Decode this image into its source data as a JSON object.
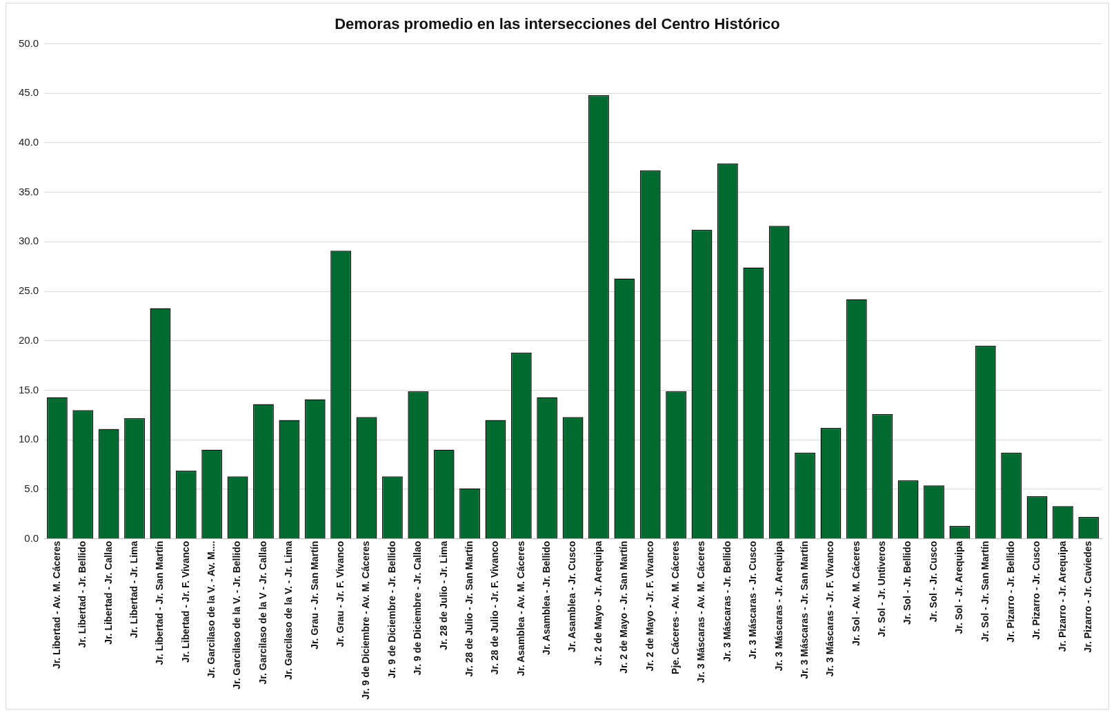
{
  "chart_data": {
    "type": "bar",
    "title": "Demoras promedio en las intersecciones del Centro Histórico",
    "categories": [
      "Jr. Libertad - Av. M. Cáceres",
      "Jr. Libertad - Jr. Bellido",
      "Jr. Libertad - Jr. Callao",
      "Jr. Libertad - Jr. Lima",
      "Jr. Libertad - Jr. San Martín",
      "Jr. Libertad - Jr. F. Vivanco",
      "Jr. Garcilaso de la V. - Av. M....",
      "Jr. Garcilaso de la V. - Jr. Bellido",
      "Jr. Garcilaso de la V - Jr. Callao",
      "Jr. Garcilaso de la V. - Jr. Lima",
      "Jr. Grau - Jr. San Martín",
      "Jr. Grau - Jr. F. Vivanco",
      "Jr. 9 de Diciembre - Av. M. Cáceres",
      "Jr. 9 de Diciembre - Jr. Bellido",
      "Jr. 9 de Diciembre - Jr. Callao",
      "Jr. 28 de Julio - Jr. Lima",
      "Jr. 28 de Julio - Jr. San Martín",
      "Jr. 28 de Julio - Jr. F. Vivanco",
      "Jr. Asamblea - Av. M. Cáceres",
      "Jr. Asamblea - Jr. Bellido",
      "Jr. Asamblea - Jr. Cusco",
      "Jr. 2 de Mayo - Jr. Arequipa",
      "Jr. 2 de Mayo - Jr. San Martín",
      "Jr. 2 de Mayo - Jr. F. Vivanco",
      "Pje. Cáceres - Av. M. Cáceres",
      "Jr. 3 Máscaras - Av. M. Cáceres",
      "Jr. 3 Máscaras - Jr. Bellido",
      "Jr. 3 Máscaras - Jr. Cusco",
      "Jr. 3 Máscaras - Jr. Arequipa",
      "Jr. 3 Máscaras - Jr. San Martín",
      "Jr. 3 Máscaras - Jr. F. Vivanco",
      "Jr. Sol - Av. M. Cáceres",
      "Jr. Sol - Jr. Untiveros",
      "Jr. Sol - Jr. Bellido",
      "Jr. Sol - Jr. Cusco",
      "Jr. Sol - Jr. Arequipa",
      "Jr. Sol - Jr. San Martín",
      "Jr. Pizarro - Jr. Bellido",
      "Jr. Pizarro - Jr. Cusco",
      "Jr. Pizarro - Jr. Arequipa",
      "Jr. Pizarro - Jr. Caviedes"
    ],
    "values": [
      14.3,
      13.0,
      11.1,
      12.2,
      23.3,
      6.9,
      9.0,
      6.3,
      13.6,
      12.0,
      14.1,
      29.1,
      12.3,
      6.3,
      14.9,
      9.0,
      5.1,
      12.0,
      18.8,
      14.3,
      12.3,
      44.8,
      26.3,
      37.2,
      14.9,
      31.2,
      37.9,
      27.4,
      31.6,
      8.7,
      11.2,
      24.2,
      12.6,
      5.9,
      5.4,
      1.3,
      19.5,
      8.7,
      4.3,
      3.3,
      2.2
    ],
    "color": "#006a30",
    "ylim": [
      0,
      50
    ],
    "yticks": [
      {
        "value": 0,
        "label": "0.0"
      },
      {
        "value": 5,
        "label": "5.0"
      },
      {
        "value": 10,
        "label": "10.0"
      },
      {
        "value": 15,
        "label": "15.0"
      },
      {
        "value": 20,
        "label": "20.0"
      },
      {
        "value": 25,
        "label": "25.0"
      },
      {
        "value": 30,
        "label": "30.0"
      },
      {
        "value": 35,
        "label": "35.0"
      },
      {
        "value": 40,
        "label": "40.0"
      },
      {
        "value": 45,
        "label": "45.0"
      },
      {
        "value": 50,
        "label": "50.0"
      }
    ],
    "grid": "y"
  }
}
